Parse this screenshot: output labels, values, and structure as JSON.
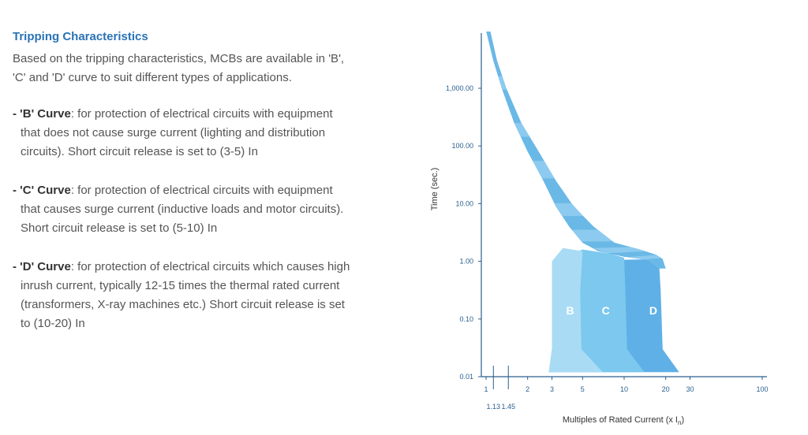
{
  "text": {
    "heading": "Tripping Characteristics",
    "intro_line1": "Based on the tripping characteristics, MCBs are available in 'B',",
    "intro_line2": "'C' and 'D' curve to suit different types of applications.",
    "items": [
      {
        "dash": "- ",
        "name": "'B' Curve",
        "line1": ": for protection of electrical circuits with equipment",
        "line2": "that does not cause surge current (lighting and distribution",
        "line3": "circuits). Short circuit release is set to (3-5) In",
        "line4": ""
      },
      {
        "dash": "- ",
        "name": "'C' Curve",
        "line1": ": for protection of electrical circuits with equipment",
        "line2": "that causes surge current (inductive loads and motor circuits).",
        "line3": "Short circuit release is set to (5-10) In",
        "line4": ""
      },
      {
        "dash": "- ",
        "name": "'D' Curve",
        "line1": ": for protection of electrical circuits which causes high",
        "line2": "inrush current, typically 12-15 times the thermal rated current",
        "line3": "(transformers, X-ray machines etc.) Short circuit release is set",
        "line4": "to (10-20) In"
      }
    ]
  },
  "chart_data": {
    "type": "area",
    "title": "",
    "xlabel": "Multiples of Rated Current (x I",
    "xlabel_sub": "n",
    "xlabel_close": ")",
    "ylabel": "Time (sec.)",
    "x_scale": "log",
    "y_scale": "log",
    "xlim": [
      1,
      100
    ],
    "ylim": [
      0.01,
      10000
    ],
    "x_ticks": [
      {
        "value": 1,
        "label": "1"
      },
      {
        "value": 2,
        "label": "2"
      },
      {
        "value": 3,
        "label": "3"
      },
      {
        "value": 5,
        "label": "5"
      },
      {
        "value": 10,
        "label": "10"
      },
      {
        "value": 20,
        "label": "20"
      },
      {
        "value": 30,
        "label": "30"
      },
      {
        "value": 100,
        "label": "100"
      }
    ],
    "x_markers": [
      {
        "value": 1.13,
        "label": "1.13"
      },
      {
        "value": 1.45,
        "label": "1.45"
      }
    ],
    "y_ticks": [
      {
        "value": 0.01,
        "label": "0.01"
      },
      {
        "value": 0.1,
        "label": "0.10"
      },
      {
        "value": 1,
        "label": "1.00"
      },
      {
        "value": 10,
        "label": "10.00"
      },
      {
        "value": 100,
        "label": "100.00"
      },
      {
        "value": 1000,
        "label": "1,000.00"
      }
    ],
    "thermal_band": {
      "lower": [
        [
          1.0,
          10000
        ],
        [
          1.13,
          3000
        ],
        [
          1.3,
          1000
        ],
        [
          1.6,
          250
        ],
        [
          2.0,
          80
        ],
        [
          2.6,
          25
        ],
        [
          3.2,
          9
        ],
        [
          4.0,
          4
        ],
        [
          5.0,
          2.1
        ],
        [
          6.5,
          1.5
        ],
        [
          10,
          1.2
        ],
        [
          15,
          1.05
        ],
        [
          18,
          0.75
        ]
      ],
      "upper": [
        [
          1.07,
          10000
        ],
        [
          1.2,
          3000
        ],
        [
          1.4,
          1000
        ],
        [
          1.8,
          250
        ],
        [
          2.4,
          80
        ],
        [
          3.2,
          25
        ],
        [
          4.3,
          9
        ],
        [
          6.0,
          4
        ],
        [
          8.5,
          2.1
        ],
        [
          13,
          1.6
        ],
        [
          17,
          1.3
        ],
        [
          19,
          1.1
        ],
        [
          20,
          0.75
        ]
      ]
    },
    "series": [
      {
        "name": "B",
        "instantaneous_range": [
          3,
          5
        ]
      },
      {
        "name": "C",
        "instantaneous_range": [
          5,
          10
        ]
      },
      {
        "name": "D",
        "instantaneous_range": [
          10,
          20
        ]
      }
    ],
    "colors": {
      "b_fill": "#a9dcf4",
      "c_fill": "#7cc8ef",
      "d_fill": "#5fb0e6",
      "thermal_fill": "#6ab8e6",
      "thermal_stripe": "#8ccbef",
      "axis": "#2a5f8f"
    }
  }
}
